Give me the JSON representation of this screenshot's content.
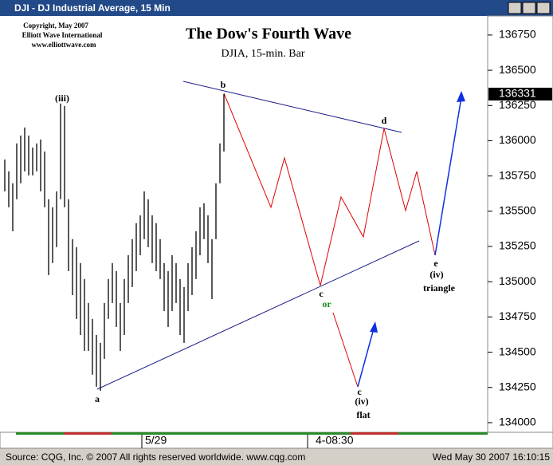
{
  "window_title": "DJI - DJ Industrial Average, 15 Min",
  "footer_left": "Source: CQG, Inc. © 2007 All rights reserved worldwide. www.cqg.com",
  "footer_right": "Wed May 30 2007 16:10:15",
  "copyright": [
    "Copyright, May 2007",
    "Elliott Wave International",
    "www.elliottwave.com"
  ],
  "chart_data": {
    "type": "ohlc",
    "title": "The Dow's Fourth Wave",
    "subtitle": "DJIA, 15-min. Bar",
    "color": "#000000",
    "high": [
      135867,
      135783,
      135698,
      135981,
      136037,
      136094,
      136037,
      135952,
      135981,
      136009,
      135924,
      135585,
      135528,
      135641,
      136264,
      136247,
      135585,
      135302,
      135245,
      135132,
      135019,
      134849,
      134736,
      134622,
      134566,
      134849,
      135019,
      135132,
      135075,
      134849,
      135019,
      135188,
      135302,
      135415,
      135471,
      135641,
      135585,
      135471,
      135415,
      135302,
      135132,
      135075,
      135188,
      135132,
      135019,
      134962,
      135132,
      135245,
      135358,
      135528,
      135556,
      135471,
      135302,
      135698,
      135981,
      136331
    ],
    "low": [
      135641,
      135528,
      135358,
      135585,
      135698,
      135783,
      135754,
      135754,
      135783,
      135641,
      135528,
      135047,
      135132,
      135245,
      135585,
      135528,
      135075,
      134905,
      134736,
      134622,
      134509,
      134509,
      134340,
      134255,
      134226,
      134453,
      134736,
      134849,
      134679,
      134509,
      134622,
      134849,
      134962,
      135075,
      135188,
      135302,
      135245,
      135132,
      135075,
      135019,
      134792,
      134679,
      134792,
      134849,
      134622,
      134566,
      134792,
      134905,
      135019,
      135188,
      135302,
      135132,
      134877,
      135302,
      135698,
      135924
    ],
    "ylim": [
      133943,
      136874
    ],
    "yticks": [
      134000,
      134250,
      134500,
      134750,
      135000,
      135250,
      135500,
      135750,
      136000,
      136250,
      136500,
      136750
    ],
    "last_price": 136331,
    "xtick_labels": [
      "5/29",
      "4-08:30"
    ],
    "wave_labels": {
      "iii": "(iii)",
      "a": "a",
      "b": "b",
      "c": "c",
      "d": "d",
      "e": "e",
      "iv": "(iv)",
      "triangle": "triangle",
      "or": "or",
      "c2": "c",
      "iv2": "(iv)",
      "flat": "flat"
    }
  }
}
